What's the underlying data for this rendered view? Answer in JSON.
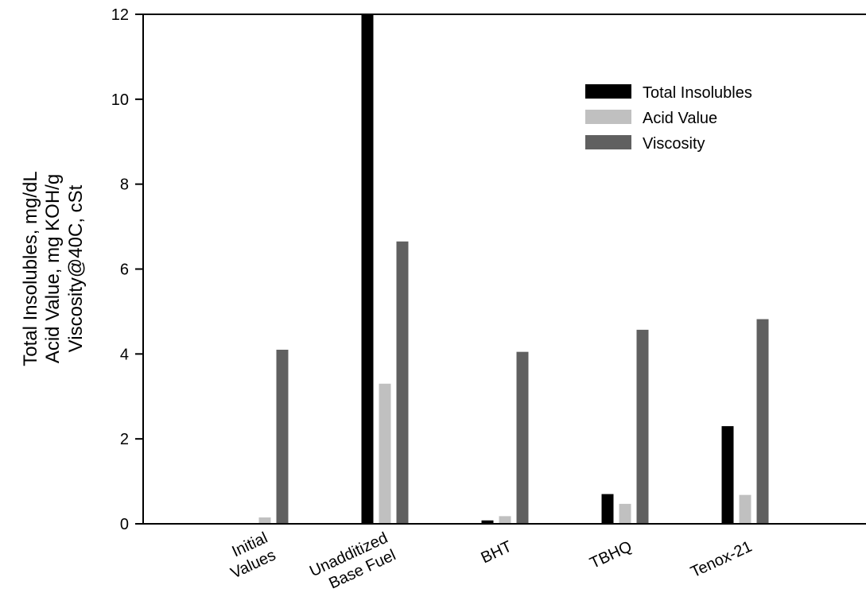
{
  "chart_data": {
    "type": "bar",
    "title": "",
    "xlabel": "",
    "ylabel_lines": [
      "Total Insolubles, mg/dL",
      "Acid Value, mg KOH/g",
      "Viscosity@40C, cSt"
    ],
    "ylim": [
      0,
      12
    ],
    "yticks": [
      "0",
      "2",
      "4",
      "6",
      "8",
      "10",
      "12"
    ],
    "grid": false,
    "legend_position": "upper-right",
    "categories": [
      [
        "Initial",
        "Values"
      ],
      [
        "Unadditized",
        "Base Fuel"
      ],
      [
        "BHT"
      ],
      [
        "TBHQ"
      ],
      [
        "Tenox-21"
      ]
    ],
    "series": [
      {
        "name": "Total Insolubles",
        "color": "#000000",
        "values": [
          0,
          12,
          0.08,
          0.7,
          2.3
        ]
      },
      {
        "name": "Acid Value",
        "color": "#c0c0c0",
        "values": [
          0.15,
          3.3,
          0.18,
          0.47,
          0.68
        ]
      },
      {
        "name": "Viscosity",
        "color": "#606060",
        "values": [
          4.1,
          6.65,
          4.05,
          4.57,
          4.82
        ]
      }
    ]
  }
}
